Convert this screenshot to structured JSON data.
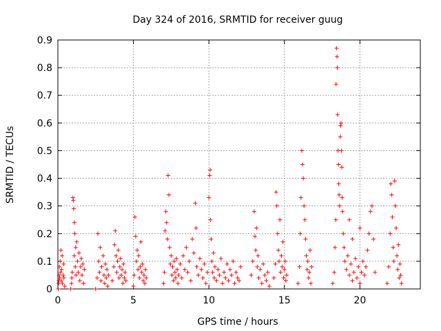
{
  "chart_data": {
    "type": "scatter",
    "title": "Day 324 of 2016, SRMTID for receiver guug",
    "xlabel": "GPS time / hours",
    "ylabel": "SRMTID / TECUs",
    "xlim": [
      0,
      24
    ],
    "ylim": [
      0,
      0.9
    ],
    "xticks": [
      0,
      5,
      10,
      15,
      20
    ],
    "xtick_labels": [
      "0",
      "5",
      "10",
      "15",
      "20"
    ],
    "yticks": [
      0,
      0.1,
      0.2,
      0.3,
      0.4,
      0.5,
      0.6,
      0.7,
      0.8,
      0.9
    ],
    "ytick_labels": [
      "0",
      "0.1",
      "0.2",
      "0.3",
      "0.4",
      "0.5",
      "0.6",
      "0.7",
      "0.8",
      "0.9"
    ],
    "grid": true,
    "marker": "+",
    "color": "#ff0000",
    "series": [
      {
        "name": "SRMTID",
        "points": [
          [
            0.05,
            0.02
          ],
          [
            0.08,
            0.05
          ],
          [
            0.1,
            0.08
          ],
          [
            0.12,
            0.04
          ],
          [
            0.15,
            0.1
          ],
          [
            0.18,
            0.06
          ],
          [
            0.2,
            0.14
          ],
          [
            0.22,
            0.03
          ],
          [
            0.25,
            0.07
          ],
          [
            0.28,
            0.12
          ],
          [
            0.3,
            0.02
          ],
          [
            0.35,
            0.05
          ],
          [
            0.38,
            0.09
          ],
          [
            0.4,
            0.04
          ],
          [
            0.45,
            0.01
          ],
          [
            0.02,
            0.0
          ],
          [
            0.06,
            0.03
          ],
          [
            0.9,
            0.02
          ],
          [
            0.95,
            0.06
          ],
          [
            1.0,
            0.33
          ],
          [
            1.02,
            0.32
          ],
          [
            1.05,
            0.29
          ],
          [
            1.08,
            0.12
          ],
          [
            1.1,
            0.24
          ],
          [
            1.12,
            0.2
          ],
          [
            1.15,
            0.08
          ],
          [
            1.18,
            0.15
          ],
          [
            1.2,
            0.05
          ],
          [
            1.25,
            0.17
          ],
          [
            1.3,
            0.1
          ],
          [
            1.35,
            0.06
          ],
          [
            1.4,
            0.13
          ],
          [
            1.45,
            0.03
          ],
          [
            1.5,
            0.08
          ],
          [
            1.55,
            0.11
          ],
          [
            1.6,
            0.05
          ],
          [
            1.65,
            0.09
          ],
          [
            1.7,
            0.02
          ],
          [
            1.75,
            0.07
          ],
          [
            0.85,
            0.0
          ],
          [
            0.92,
            0.04
          ],
          [
            2.5,
            0.0
          ],
          [
            2.6,
            0.04
          ],
          [
            2.65,
            0.2
          ],
          [
            2.7,
            0.1
          ],
          [
            2.75,
            0.06
          ],
          [
            2.8,
            0.15
          ],
          [
            2.85,
            0.03
          ],
          [
            2.9,
            0.08
          ],
          [
            3.0,
            0.12
          ],
          [
            3.05,
            0.05
          ],
          [
            3.1,
            0.02
          ],
          [
            3.15,
            0.09
          ],
          [
            3.2,
            0.04
          ],
          [
            3.25,
            0.07
          ],
          [
            3.3,
            0.01
          ],
          [
            3.35,
            0.05
          ],
          [
            3.6,
            0.03
          ],
          [
            3.7,
            0.08
          ],
          [
            3.75,
            0.16
          ],
          [
            3.8,
            0.21
          ],
          [
            3.85,
            0.12
          ],
          [
            3.9,
            0.06
          ],
          [
            3.95,
            0.1
          ],
          [
            4.0,
            0.14
          ],
          [
            4.05,
            0.04
          ],
          [
            4.1,
            0.08
          ],
          [
            4.15,
            0.11
          ],
          [
            4.2,
            0.05
          ],
          [
            4.25,
            0.07
          ],
          [
            4.3,
            0.02
          ],
          [
            4.35,
            0.09
          ],
          [
            4.4,
            0.04
          ],
          [
            4.45,
            0.06
          ],
          [
            4.5,
            0.03
          ],
          [
            5.0,
            0.01
          ],
          [
            5.05,
            0.05
          ],
          [
            5.1,
            0.26
          ],
          [
            5.15,
            0.19
          ],
          [
            5.2,
            0.1
          ],
          [
            5.25,
            0.14
          ],
          [
            5.3,
            0.07
          ],
          [
            5.35,
            0.12
          ],
          [
            5.4,
            0.04
          ],
          [
            5.45,
            0.08
          ],
          [
            5.5,
            0.17
          ],
          [
            5.55,
            0.06
          ],
          [
            5.6,
            0.09
          ],
          [
            5.65,
            0.03
          ],
          [
            5.7,
            0.05
          ],
          [
            5.75,
            0.02
          ],
          [
            5.8,
            0.07
          ],
          [
            5.85,
            0.04
          ],
          [
            7.0,
            0.02
          ],
          [
            7.05,
            0.06
          ],
          [
            7.1,
            0.21
          ],
          [
            7.15,
            0.28
          ],
          [
            7.2,
            0.24
          ],
          [
            7.25,
            0.18
          ],
          [
            7.3,
            0.41
          ],
          [
            7.35,
            0.34
          ],
          [
            7.4,
            0.15
          ],
          [
            7.45,
            0.09
          ],
          [
            7.5,
            0.12
          ],
          [
            7.55,
            0.05
          ],
          [
            7.6,
            0.08
          ],
          [
            7.65,
            0.03
          ],
          [
            7.7,
            0.1
          ],
          [
            7.75,
            0.06
          ],
          [
            7.8,
            0.04
          ],
          [
            7.85,
            0.11
          ],
          [
            7.9,
            0.07
          ],
          [
            7.95,
            0.02
          ],
          [
            8.0,
            0.05
          ],
          [
            8.1,
            0.09
          ],
          [
            8.2,
            0.04
          ],
          [
            8.3,
            0.12
          ],
          [
            8.4,
            0.07
          ],
          [
            8.5,
            0.15
          ],
          [
            8.6,
            0.06
          ],
          [
            8.7,
            0.1
          ],
          [
            8.8,
            0.03
          ],
          [
            8.9,
            0.18
          ],
          [
            9.0,
            0.13
          ],
          [
            9.1,
            0.31
          ],
          [
            9.15,
            0.22
          ],
          [
            9.2,
            0.08
          ],
          [
            9.3,
            0.05
          ],
          [
            9.4,
            0.11
          ],
          [
            9.5,
            0.07
          ],
          [
            9.6,
            0.04
          ],
          [
            9.7,
            0.09
          ],
          [
            9.8,
            0.02
          ],
          [
            9.9,
            0.06
          ],
          [
            10.0,
            0.33
          ],
          [
            10.05,
            0.41
          ],
          [
            10.08,
            0.43
          ],
          [
            10.1,
            0.25
          ],
          [
            10.15,
            0.18
          ],
          [
            10.2,
            0.1
          ],
          [
            10.25,
            0.06
          ],
          [
            10.3,
            0.13
          ],
          [
            10.35,
            0.04
          ],
          [
            10.4,
            0.08
          ],
          [
            10.5,
            0.03
          ],
          [
            10.6,
            0.07
          ],
          [
            10.7,
            0.05
          ],
          [
            10.8,
            0.11
          ],
          [
            10.9,
            0.02
          ],
          [
            11.0,
            0.06
          ],
          [
            11.1,
            0.04
          ],
          [
            11.2,
            0.09
          ],
          [
            11.3,
            0.03
          ],
          [
            11.4,
            0.07
          ],
          [
            11.5,
            0.05
          ],
          [
            11.6,
            0.1
          ],
          [
            11.7,
            0.02
          ],
          [
            11.8,
            0.06
          ],
          [
            11.9,
            0.04
          ],
          [
            12.0,
            0.03
          ],
          [
            12.1,
            0.08
          ],
          [
            12.8,
            0.05
          ],
          [
            12.9,
            0.1
          ],
          [
            13.0,
            0.28
          ],
          [
            13.05,
            0.19
          ],
          [
            13.1,
            0.14
          ],
          [
            13.15,
            0.22
          ],
          [
            13.2,
            0.08
          ],
          [
            13.25,
            0.12
          ],
          [
            13.3,
            0.04
          ],
          [
            13.4,
            0.07
          ],
          [
            13.5,
            0.02
          ],
          [
            13.6,
            0.09
          ],
          [
            13.7,
            0.05
          ],
          [
            13.8,
            0.03
          ],
          [
            13.9,
            0.06
          ],
          [
            14.0,
            0.01
          ],
          [
            14.3,
            0.04
          ],
          [
            14.4,
            0.09
          ],
          [
            14.45,
            0.35
          ],
          [
            14.5,
            0.3
          ],
          [
            14.55,
            0.2
          ],
          [
            14.6,
            0.14
          ],
          [
            14.65,
            0.1
          ],
          [
            14.7,
            0.25
          ],
          [
            14.75,
            0.06
          ],
          [
            14.8,
            0.12
          ],
          [
            14.85,
            0.08
          ],
          [
            14.9,
            0.17
          ],
          [
            14.95,
            0.04
          ],
          [
            15.0,
            0.07
          ],
          [
            15.05,
            0.1
          ],
          [
            15.1,
            0.03
          ],
          [
            15.15,
            0.05
          ],
          [
            15.9,
            0.02
          ],
          [
            16.0,
            0.08
          ],
          [
            16.05,
            0.2
          ],
          [
            16.1,
            0.33
          ],
          [
            16.15,
            0.5
          ],
          [
            16.2,
            0.45
          ],
          [
            16.25,
            0.4
          ],
          [
            16.3,
            0.3
          ],
          [
            16.35,
            0.25
          ],
          [
            16.4,
            0.18
          ],
          [
            16.45,
            0.12
          ],
          [
            16.5,
            0.07
          ],
          [
            16.55,
            0.1
          ],
          [
            16.6,
            0.04
          ],
          [
            16.65,
            0.06
          ],
          [
            16.7,
            0.14
          ],
          [
            16.75,
            0.02
          ],
          [
            16.8,
            0.08
          ],
          [
            18.2,
            0.02
          ],
          [
            18.3,
            0.06
          ],
          [
            18.35,
            0.15
          ],
          [
            18.4,
            0.25
          ],
          [
            18.42,
            0.74
          ],
          [
            18.45,
            0.87
          ],
          [
            18.48,
            0.84
          ],
          [
            18.5,
            0.8
          ],
          [
            18.52,
            0.63
          ],
          [
            18.55,
            0.5
          ],
          [
            18.58,
            0.45
          ],
          [
            18.6,
            0.38
          ],
          [
            18.62,
            0.34
          ],
          [
            18.65,
            0.3
          ],
          [
            18.7,
            0.55
          ],
          [
            18.72,
            0.59
          ],
          [
            18.75,
            0.6
          ],
          [
            18.78,
            0.5
          ],
          [
            18.8,
            0.44
          ],
          [
            18.82,
            0.33
          ],
          [
            18.85,
            0.28
          ],
          [
            18.9,
            0.2
          ],
          [
            18.95,
            0.15
          ],
          [
            19.0,
            0.1
          ],
          [
            19.1,
            0.07
          ],
          [
            19.2,
            0.12
          ],
          [
            19.3,
            0.05
          ],
          [
            19.4,
            0.09
          ],
          [
            19.5,
            0.03
          ],
          [
            19.6,
            0.06
          ],
          [
            19.7,
            0.11
          ],
          [
            19.8,
            0.04
          ],
          [
            19.9,
            0.08
          ],
          [
            20.0,
            0.02
          ],
          [
            20.1,
            0.06
          ],
          [
            20.2,
            0.1
          ],
          [
            20.3,
            0.05
          ],
          [
            20.4,
            0.08
          ],
          [
            20.5,
            0.14
          ],
          [
            20.6,
            0.2
          ],
          [
            20.7,
            0.28
          ],
          [
            20.8,
            0.3
          ],
          [
            20.9,
            0.18
          ],
          [
            21.0,
            0.06
          ],
          [
            19.3,
            0.25
          ],
          [
            19.5,
            0.18
          ],
          [
            20.0,
            0.22
          ],
          [
            21.8,
            0.02
          ],
          [
            21.9,
            0.08
          ],
          [
            22.0,
            0.2
          ],
          [
            22.05,
            0.38
          ],
          [
            22.1,
            0.34
          ],
          [
            22.15,
            0.26
          ],
          [
            22.2,
            0.15
          ],
          [
            22.25,
            0.1
          ],
          [
            22.3,
            0.39
          ],
          [
            22.35,
            0.3
          ],
          [
            22.4,
            0.22
          ],
          [
            22.45,
            0.12
          ],
          [
            22.5,
            0.07
          ],
          [
            22.55,
            0.16
          ],
          [
            22.6,
            0.04
          ],
          [
            22.65,
            0.09
          ],
          [
            22.7,
            0.05
          ],
          [
            22.75,
            0.02
          ]
        ]
      }
    ]
  }
}
